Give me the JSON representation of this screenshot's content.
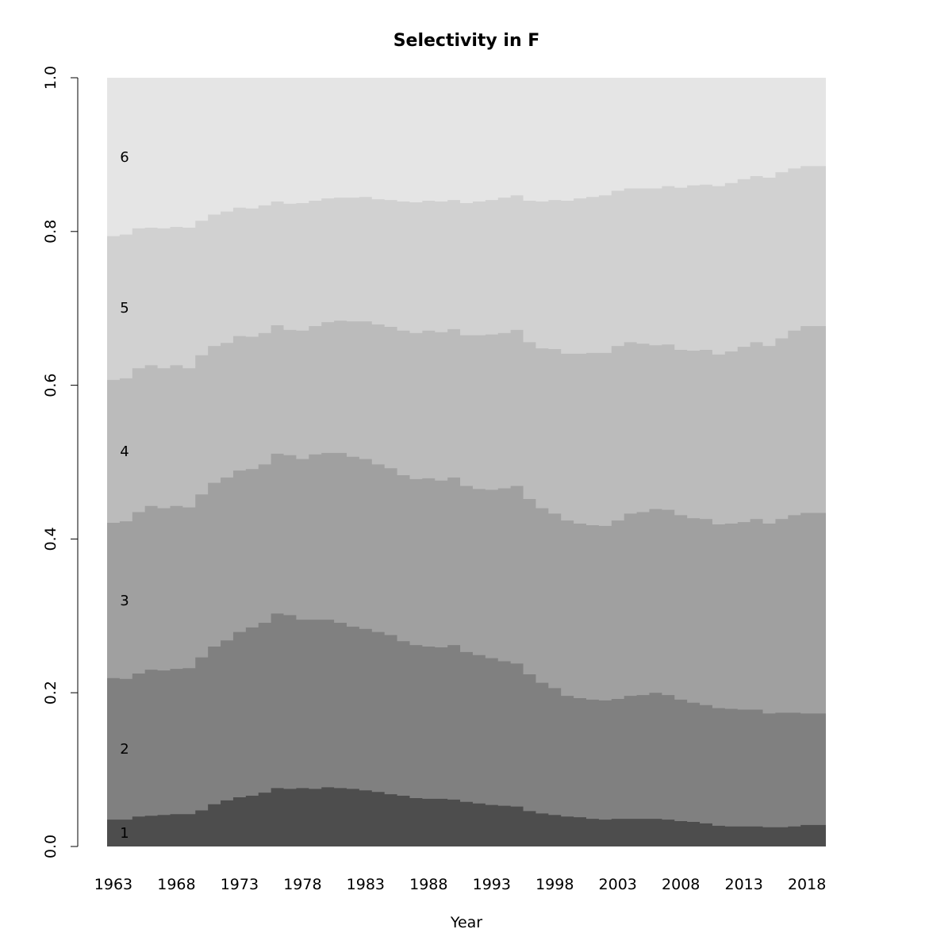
{
  "chart_data": {
    "type": "area",
    "stacked": true,
    "step": true,
    "title": "Selectivity in F",
    "xlabel": "Year",
    "ylabel": "",
    "xlim": [
      1963,
      2019
    ],
    "ylim": [
      0,
      1
    ],
    "x_ticks": [
      "1963",
      "1968",
      "1973",
      "1978",
      "1983",
      "1988",
      "1993",
      "1998",
      "2003",
      "2008",
      "2013",
      "2018"
    ],
    "y_ticks": [
      "0.0",
      "0.2",
      "0.4",
      "0.6",
      "0.8",
      "1.0"
    ],
    "grid": false,
    "legend": "none",
    "band_labels": [
      "1",
      "2",
      "3",
      "4",
      "5",
      "6"
    ],
    "colors": [
      "#4d4d4d",
      "#808080",
      "#a0a0a0",
      "#bbbbbb",
      "#d1d1d1",
      "#e5e5e5"
    ],
    "years_start": 1963,
    "years_end": 2019,
    "cumulative": [
      {
        "age": "1",
        "values": [
          0.035,
          0.035,
          0.039,
          0.04,
          0.041,
          0.042,
          0.042,
          0.047,
          0.055,
          0.06,
          0.064,
          0.066,
          0.07,
          0.076,
          0.075,
          0.076,
          0.075,
          0.077,
          0.076,
          0.075,
          0.073,
          0.071,
          0.068,
          0.066,
          0.063,
          0.062,
          0.062,
          0.061,
          0.058,
          0.056,
          0.054,
          0.053,
          0.052,
          0.046,
          0.043,
          0.041,
          0.039,
          0.038,
          0.036,
          0.035,
          0.036,
          0.036,
          0.036,
          0.036,
          0.035,
          0.033,
          0.032,
          0.03,
          0.027,
          0.026,
          0.026,
          0.026,
          0.025,
          0.025,
          0.026,
          0.028,
          0.028
        ]
      },
      {
        "age": "2",
        "values": [
          0.219,
          0.218,
          0.225,
          0.23,
          0.229,
          0.231,
          0.232,
          0.246,
          0.26,
          0.268,
          0.279,
          0.285,
          0.291,
          0.303,
          0.301,
          0.295,
          0.295,
          0.295,
          0.291,
          0.286,
          0.283,
          0.279,
          0.275,
          0.267,
          0.262,
          0.26,
          0.259,
          0.262,
          0.253,
          0.249,
          0.245,
          0.241,
          0.238,
          0.224,
          0.213,
          0.206,
          0.196,
          0.193,
          0.191,
          0.19,
          0.192,
          0.196,
          0.197,
          0.2,
          0.197,
          0.191,
          0.187,
          0.184,
          0.18,
          0.179,
          0.178,
          0.178,
          0.173,
          0.174,
          0.174,
          0.173,
          0.173
        ]
      },
      {
        "age": "3",
        "values": [
          0.421,
          0.423,
          0.435,
          0.443,
          0.44,
          0.443,
          0.441,
          0.458,
          0.473,
          0.48,
          0.489,
          0.491,
          0.497,
          0.511,
          0.509,
          0.504,
          0.51,
          0.512,
          0.512,
          0.507,
          0.504,
          0.497,
          0.492,
          0.483,
          0.478,
          0.479,
          0.476,
          0.48,
          0.469,
          0.465,
          0.464,
          0.466,
          0.469,
          0.452,
          0.44,
          0.433,
          0.424,
          0.42,
          0.418,
          0.417,
          0.424,
          0.433,
          0.435,
          0.439,
          0.438,
          0.431,
          0.427,
          0.426,
          0.419,
          0.42,
          0.422,
          0.426,
          0.42,
          0.426,
          0.431,
          0.434,
          0.434
        ]
      },
      {
        "age": "4",
        "values": [
          0.607,
          0.609,
          0.622,
          0.626,
          0.622,
          0.626,
          0.622,
          0.639,
          0.651,
          0.655,
          0.664,
          0.663,
          0.668,
          0.678,
          0.672,
          0.671,
          0.677,
          0.682,
          0.684,
          0.683,
          0.683,
          0.679,
          0.676,
          0.671,
          0.668,
          0.671,
          0.669,
          0.673,
          0.665,
          0.665,
          0.666,
          0.668,
          0.672,
          0.656,
          0.648,
          0.647,
          0.641,
          0.641,
          0.642,
          0.642,
          0.651,
          0.656,
          0.654,
          0.652,
          0.653,
          0.646,
          0.645,
          0.646,
          0.64,
          0.644,
          0.65,
          0.656,
          0.651,
          0.661,
          0.671,
          0.677,
          0.677
        ]
      },
      {
        "age": "5",
        "values": [
          0.794,
          0.796,
          0.804,
          0.805,
          0.804,
          0.806,
          0.805,
          0.814,
          0.822,
          0.826,
          0.831,
          0.83,
          0.834,
          0.839,
          0.836,
          0.837,
          0.84,
          0.843,
          0.844,
          0.844,
          0.845,
          0.842,
          0.841,
          0.839,
          0.838,
          0.84,
          0.839,
          0.841,
          0.837,
          0.839,
          0.841,
          0.844,
          0.847,
          0.84,
          0.839,
          0.841,
          0.84,
          0.843,
          0.845,
          0.847,
          0.853,
          0.856,
          0.856,
          0.856,
          0.859,
          0.857,
          0.86,
          0.861,
          0.859,
          0.863,
          0.868,
          0.872,
          0.87,
          0.877,
          0.882,
          0.885,
          0.885
        ]
      }
    ]
  }
}
